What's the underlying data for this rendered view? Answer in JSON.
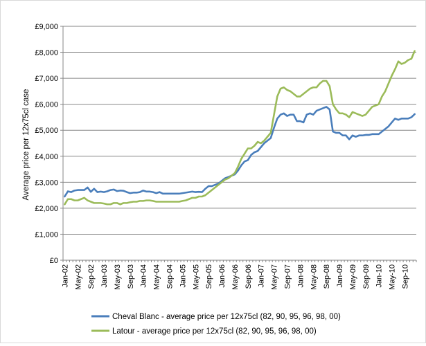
{
  "chart_data": {
    "type": "line",
    "title": "",
    "xlabel": "",
    "ylabel": "Average price per 12x75cl case",
    "ylim": [
      0,
      9000
    ],
    "y_ticks": [
      0,
      1000,
      2000,
      3000,
      4000,
      5000,
      6000,
      7000,
      8000,
      9000
    ],
    "y_tick_labels": [
      "£0",
      "£1,000",
      "£2,000",
      "£3,000",
      "£4,000",
      "£5,000",
      "£6,000",
      "£7,000",
      "£8,000",
      "£9,000"
    ],
    "x_tick_labels": [
      "Jan-02",
      "May-02",
      "Sep-02",
      "Jan-03",
      "May-03",
      "Sep-03",
      "Jan-04",
      "May-04",
      "Sep-04",
      "Jan-05",
      "May-05",
      "Sep-05",
      "Jan-06",
      "May-06",
      "Sep-06",
      "Jan-07",
      "May-07",
      "Sep-07",
      "Jan-08",
      "May-08",
      "Sep-08",
      "Jan-09",
      "May-09",
      "Sep-09",
      "Jan-10",
      "May-10",
      "Sep-10"
    ],
    "x_start": "Jan-02",
    "x_interval": "month",
    "grid": "horizontal",
    "legend": "bottom",
    "series": [
      {
        "name": "Cheval Blanc - average price per 12x75cl (82, 90, 95, 96, 98, 00)",
        "color": "#4a7ebb",
        "values": [
          2450,
          2650,
          2620,
          2680,
          2700,
          2700,
          2700,
          2800,
          2630,
          2750,
          2620,
          2640,
          2620,
          2650,
          2700,
          2720,
          2660,
          2680,
          2670,
          2620,
          2580,
          2600,
          2600,
          2620,
          2680,
          2640,
          2640,
          2620,
          2580,
          2620,
          2560,
          2560,
          2560,
          2560,
          2560,
          2560,
          2580,
          2600,
          2620,
          2640,
          2620,
          2630,
          2620,
          2750,
          2850,
          2850,
          2900,
          2950,
          3050,
          3150,
          3200,
          3250,
          3300,
          3450,
          3650,
          3800,
          3850,
          4050,
          4150,
          4200,
          4350,
          4500,
          4600,
          4700,
          5100,
          5450,
          5600,
          5650,
          5550,
          5600,
          5600,
          5350,
          5350,
          5300,
          5600,
          5650,
          5600,
          5750,
          5800,
          5850,
          5900,
          5800,
          4950,
          4900,
          4900,
          4800,
          4800,
          4650,
          4800,
          4750,
          4800,
          4800,
          4820,
          4820,
          4850,
          4850,
          4850,
          4950,
          5050,
          5150,
          5300,
          5450,
          5400,
          5450,
          5450,
          5450,
          5500,
          5620
        ]
      },
      {
        "name": "Latour - average price per 12x75cl (82, 90, 95, 96, 98, 00)",
        "color": "#9bbb59",
        "values": [
          2150,
          2350,
          2350,
          2300,
          2300,
          2350,
          2400,
          2300,
          2250,
          2200,
          2200,
          2200,
          2180,
          2150,
          2150,
          2200,
          2200,
          2150,
          2200,
          2200,
          2230,
          2250,
          2250,
          2280,
          2280,
          2300,
          2300,
          2280,
          2250,
          2250,
          2250,
          2250,
          2250,
          2250,
          2250,
          2250,
          2280,
          2300,
          2350,
          2400,
          2400,
          2450,
          2450,
          2500,
          2600,
          2700,
          2800,
          2900,
          3000,
          3100,
          3150,
          3250,
          3350,
          3600,
          3900,
          4100,
          4300,
          4300,
          4400,
          4550,
          4500,
          4600,
          4750,
          4900,
          5600,
          6300,
          6600,
          6650,
          6550,
          6500,
          6400,
          6300,
          6300,
          6400,
          6500,
          6600,
          6650,
          6650,
          6800,
          6900,
          6900,
          6700,
          6000,
          5800,
          5650,
          5650,
          5600,
          5500,
          5700,
          5650,
          5600,
          5550,
          5600,
          5750,
          5900,
          5950,
          6000,
          6300,
          6500,
          6800,
          7100,
          7350,
          7650,
          7550,
          7600,
          7700,
          7750,
          8050
        ]
      }
    ]
  }
}
